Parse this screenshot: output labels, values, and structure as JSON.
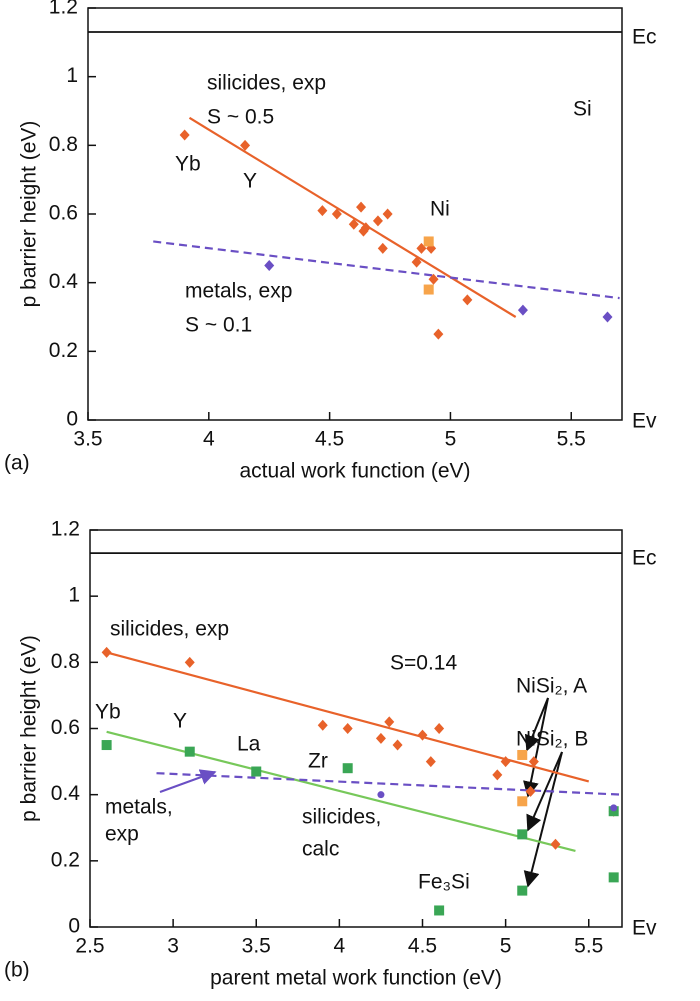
{
  "chart_data": [
    {
      "type": "scatter",
      "panel_label": "(a)",
      "x_label": "actual work function (eV)",
      "y_label": "p barrier height (eV)",
      "top_label": "Ec",
      "bottom_label": "Ev",
      "ec_level": 1.13,
      "xlim": [
        3.5,
        5.71
      ],
      "ylim": [
        0,
        1.2
      ],
      "xticks": [
        3.5,
        4,
        4.5,
        5,
        5.5
      ],
      "yticks": [
        0,
        0.2,
        0.4,
        0.6,
        0.8,
        1,
        1.2
      ],
      "series": [
        {
          "color": "#e8622a",
          "marker": "diamond",
          "x": [
            3.9,
            4.15,
            4.47,
            4.53,
            4.6,
            4.63,
            4.64,
            4.65,
            4.7,
            4.72,
            4.74,
            4.86,
            4.88,
            4.92,
            4.93,
            4.95,
            5.07
          ],
          "values": [
            0.83,
            0.8,
            0.61,
            0.6,
            0.57,
            0.62,
            0.55,
            0.56,
            0.58,
            0.5,
            0.6,
            0.46,
            0.5,
            0.5,
            0.41,
            0.25,
            0.35
          ]
        },
        {
          "color": "#f7a44a",
          "marker": "square",
          "x": [
            4.91,
            4.91
          ],
          "values": [
            0.52,
            0.38
          ]
        },
        {
          "color": "#6a4fc4",
          "marker": "diamond",
          "x": [
            4.25,
            5.3,
            5.65
          ],
          "values": [
            0.45,
            0.32,
            0.3
          ]
        }
      ],
      "fits": [
        {
          "color": "#e8622a",
          "dash": false,
          "x": [
            3.92,
            5.27
          ],
          "y": [
            0.88,
            0.3
          ]
        },
        {
          "color": "#6a4fc4",
          "dash": true,
          "x": [
            3.77,
            5.7
          ],
          "y": [
            0.52,
            0.355
          ]
        }
      ],
      "annotations": [
        {
          "text": "silicides, exp",
          "color": "#e8622a"
        },
        {
          "text": "S ~ 0.5",
          "color": "#e8622a"
        },
        {
          "text": "Yb",
          "color": "#111"
        },
        {
          "text": "Y",
          "color": "#111"
        },
        {
          "text": "Ni",
          "color": "#111"
        },
        {
          "text": "Si",
          "color": "#111"
        },
        {
          "text": "metals, exp",
          "color": "#6a4fc4"
        },
        {
          "text": "S ~ 0.1",
          "color": "#6a4fc4"
        }
      ]
    },
    {
      "type": "scatter",
      "panel_label": "(b)",
      "x_label": "parent metal work function (eV)",
      "y_label": "p barrier height (eV)",
      "top_label": "Ec",
      "bottom_label": "Ev",
      "ec_level": 1.13,
      "xlim": [
        2.5,
        5.7
      ],
      "ylim": [
        0,
        1.2
      ],
      "xticks": [
        2.5,
        3,
        3.5,
        4,
        4.5,
        5,
        5.5
      ],
      "yticks": [
        0,
        0.2,
        0.4,
        0.6,
        0.8,
        1,
        1.2
      ],
      "series": [
        {
          "color": "#e8622a",
          "marker": "diamond",
          "x": [
            2.6,
            3.1,
            3.9,
            4.05,
            4.25,
            4.3,
            4.35,
            4.5,
            4.55,
            4.6,
            4.95,
            5.0,
            5.15,
            5.17,
            5.3,
            5.65
          ],
          "values": [
            0.83,
            0.8,
            0.61,
            0.6,
            0.57,
            0.62,
            0.55,
            0.58,
            0.5,
            0.6,
            0.46,
            0.5,
            0.41,
            0.5,
            0.25,
            0.35
          ]
        },
        {
          "color": "#f7a44a",
          "marker": "square",
          "x": [
            5.1,
            5.1
          ],
          "values": [
            0.52,
            0.38
          ]
        },
        {
          "color": "#3aa655",
          "marker": "square",
          "x": [
            2.6,
            3.1,
            3.5,
            4.05,
            4.6,
            5.1,
            5.1,
            5.65,
            5.65
          ],
          "values": [
            0.55,
            0.53,
            0.47,
            0.48,
            0.05,
            0.28,
            0.11,
            0.15,
            0.35
          ]
        },
        {
          "color": "#6a4fc4",
          "marker": "circle",
          "x": [
            4.25,
            5.65
          ],
          "values": [
            0.4,
            0.36
          ]
        }
      ],
      "fits": [
        {
          "color": "#e8622a",
          "dash": false,
          "x": [
            2.6,
            5.5
          ],
          "y": [
            0.83,
            0.44
          ]
        },
        {
          "color": "#77c85a",
          "dash": false,
          "x": [
            2.6,
            5.42
          ],
          "y": [
            0.59,
            0.23
          ]
        },
        {
          "color": "#6a4fc4",
          "dash": true,
          "x": [
            2.9,
            5.7
          ],
          "y": [
            0.465,
            0.4
          ]
        }
      ],
      "annotations": [
        {
          "text": "silicides, exp",
          "color": "#f7a44a"
        },
        {
          "text": "S=0.14",
          "color": "#111"
        },
        {
          "text": "Yb",
          "color": "#111"
        },
        {
          "text": "Y",
          "color": "#111"
        },
        {
          "text": "La",
          "color": "#111"
        },
        {
          "text": "Zr",
          "color": "#111"
        },
        {
          "text": "metals,",
          "color": "#6a4fc4"
        },
        {
          "text": "exp",
          "color": "#6a4fc4"
        },
        {
          "text": "silicides,",
          "color": "#3aa655"
        },
        {
          "text": "calc",
          "color": "#3aa655"
        },
        {
          "text": "Fe₃Si",
          "color": "#111"
        },
        {
          "text": "NiSi₂, A",
          "color": "#111"
        },
        {
          "text": "NiSi₂, B",
          "color": "#111"
        }
      ]
    }
  ]
}
